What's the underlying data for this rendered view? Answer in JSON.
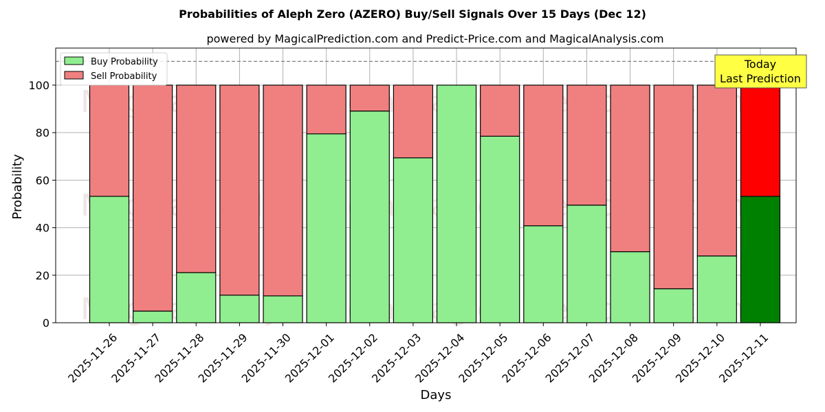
{
  "chart_data": {
    "type": "bar",
    "stacked": true,
    "title": "Probabilities of Aleph Zero (AZERO) Buy/Sell Signals Over 15 Days (Dec 12)",
    "subtitle": "powered by MagicalPrediction.com and Predict-Price.com and MagicalAnalysis.com",
    "xlabel": "Days",
    "ylabel": "Probability",
    "ylim": [
      0,
      115.6
    ],
    "yticks": [
      0,
      20,
      40,
      60,
      80,
      100
    ],
    "grid": true,
    "legend_position": "upper left",
    "reference_line": {
      "y": 110,
      "style": "dashed",
      "color": "#808080"
    },
    "categories": [
      "2025-11-26",
      "2025-11-27",
      "2025-11-28",
      "2025-11-29",
      "2025-11-30",
      "2025-12-01",
      "2025-12-02",
      "2025-12-03",
      "2025-12-04",
      "2025-12-05",
      "2025-12-06",
      "2025-12-07",
      "2025-12-08",
      "2025-12-09",
      "2025-12-10",
      "2025-12-11"
    ],
    "series": [
      {
        "name": "Buy Probability",
        "color": "#90ee90",
        "values": [
          53.2,
          4.9,
          21.1,
          11.6,
          11.3,
          79.5,
          89.1,
          69.4,
          100.0,
          78.5,
          40.8,
          49.5,
          29.9,
          14.3,
          28.1,
          53.2
        ]
      },
      {
        "name": "Sell Probability",
        "color": "#f08080",
        "values": [
          46.8,
          95.1,
          78.9,
          88.4,
          88.7,
          20.5,
          10.9,
          30.6,
          0.0,
          21.5,
          59.2,
          50.5,
          70.1,
          85.7,
          71.9,
          46.8
        ]
      }
    ],
    "highlight": {
      "index": 15,
      "buy_color": "#008000",
      "sell_color": "#ff0000"
    },
    "annotation": {
      "lines": [
        "Today",
        "Last Prediction"
      ],
      "background": "#ffff44"
    },
    "watermarks": [
      "MagicalAnalysis.com",
      "MagicalPrediction.com"
    ]
  },
  "legend": {
    "buy_label": "Buy Probability",
    "sell_label": "Sell Probability"
  }
}
